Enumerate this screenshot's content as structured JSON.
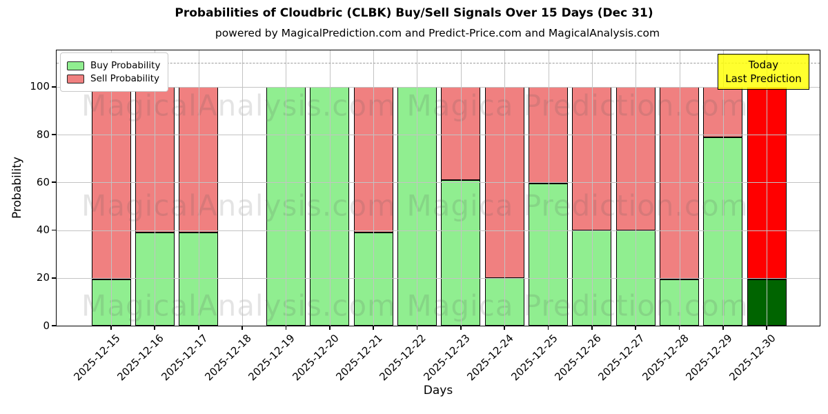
{
  "title": "Probabilities of Cloudbric (CLBK) Buy/Sell Signals Over 15 Days (Dec 31)",
  "subtitle": "powered by MagicalPrediction.com and Predict-Price.com and MagicalAnalysis.com",
  "legend": {
    "buy_label": "Buy Probability",
    "sell_label": "Sell Probability"
  },
  "annotation": {
    "line1": "Today",
    "line2": "Last Prediction"
  },
  "watermarks": {
    "left_text": "MagicalAnalysis.com",
    "right_text": "Magica Prediction.com"
  },
  "colors": {
    "buy": "#90EE90",
    "sell": "#F08080",
    "buy_today": "#006400",
    "sell_today": "#FF0000",
    "annotation_bg": "#FFFF00",
    "grid": "#c3c3c3",
    "dashed_line": "#999999"
  },
  "chart_data": {
    "type": "bar",
    "stacked": true,
    "title": "Probabilities of Cloudbric (CLBK) Buy/Sell Signals Over 15 Days (Dec 31)",
    "xlabel": "Days",
    "ylabel": "Probability",
    "ylim": [
      0,
      115.3
    ],
    "yticks": [
      0,
      20,
      40,
      60,
      80,
      100
    ],
    "dashed_line_y": 110,
    "grid": true,
    "legend_position": "upper left",
    "categories": [
      "2025-12-15",
      "2025-12-16",
      "2025-12-17",
      "2025-12-18",
      "2025-12-19",
      "2025-12-20",
      "2025-12-21",
      "2025-12-22",
      "2025-12-23",
      "2025-12-24",
      "2025-12-25",
      "2025-12-26",
      "2025-12-27",
      "2025-12-28",
      "2025-12-29",
      "2025-12-30"
    ],
    "series": [
      {
        "name": "Buy Probability",
        "color": "#90EE90",
        "today_color": "#006400",
        "values": [
          19.5,
          39,
          39,
          null,
          100,
          100,
          39,
          100,
          61,
          20,
          59.5,
          40,
          40,
          19.5,
          79,
          19.5
        ]
      },
      {
        "name": "Sell Probability",
        "color": "#F08080",
        "today_color": "#FF0000",
        "values": [
          80.5,
          61,
          61,
          null,
          0,
          0,
          61,
          0,
          39,
          80,
          40.5,
          60,
          60,
          80.5,
          21,
          80.5
        ]
      }
    ],
    "today_index": 15
  }
}
